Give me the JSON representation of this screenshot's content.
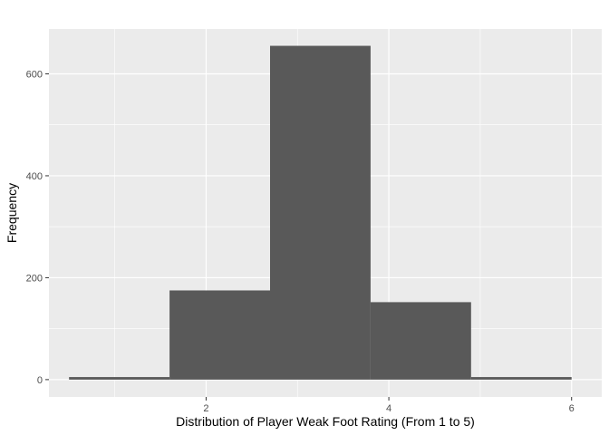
{
  "chart_data": {
    "type": "bar",
    "subtype": "histogram",
    "xlabel": "Distribution of Player Weak Foot Rating (From 1 to 5)",
    "ylabel": "Frequency",
    "bins": [
      {
        "x_start": 0.5,
        "x_end": 1.6,
        "count": 5
      },
      {
        "x_start": 1.6,
        "x_end": 2.7,
        "count": 175
      },
      {
        "x_start": 2.7,
        "x_end": 3.8,
        "count": 655
      },
      {
        "x_start": 3.8,
        "x_end": 4.9,
        "count": 152
      },
      {
        "x_start": 4.9,
        "x_end": 6.0,
        "count": 5
      }
    ],
    "xlim": [
      0.28,
      6.33
    ],
    "ylim": [
      -34,
      688
    ],
    "x_ticks": [
      2,
      4,
      6
    ],
    "y_ticks": [
      0,
      200,
      400,
      600
    ],
    "grid": true,
    "bar_color": "#595959",
    "panel_color": "#ebebeb",
    "grid_color": "#ffffff"
  }
}
